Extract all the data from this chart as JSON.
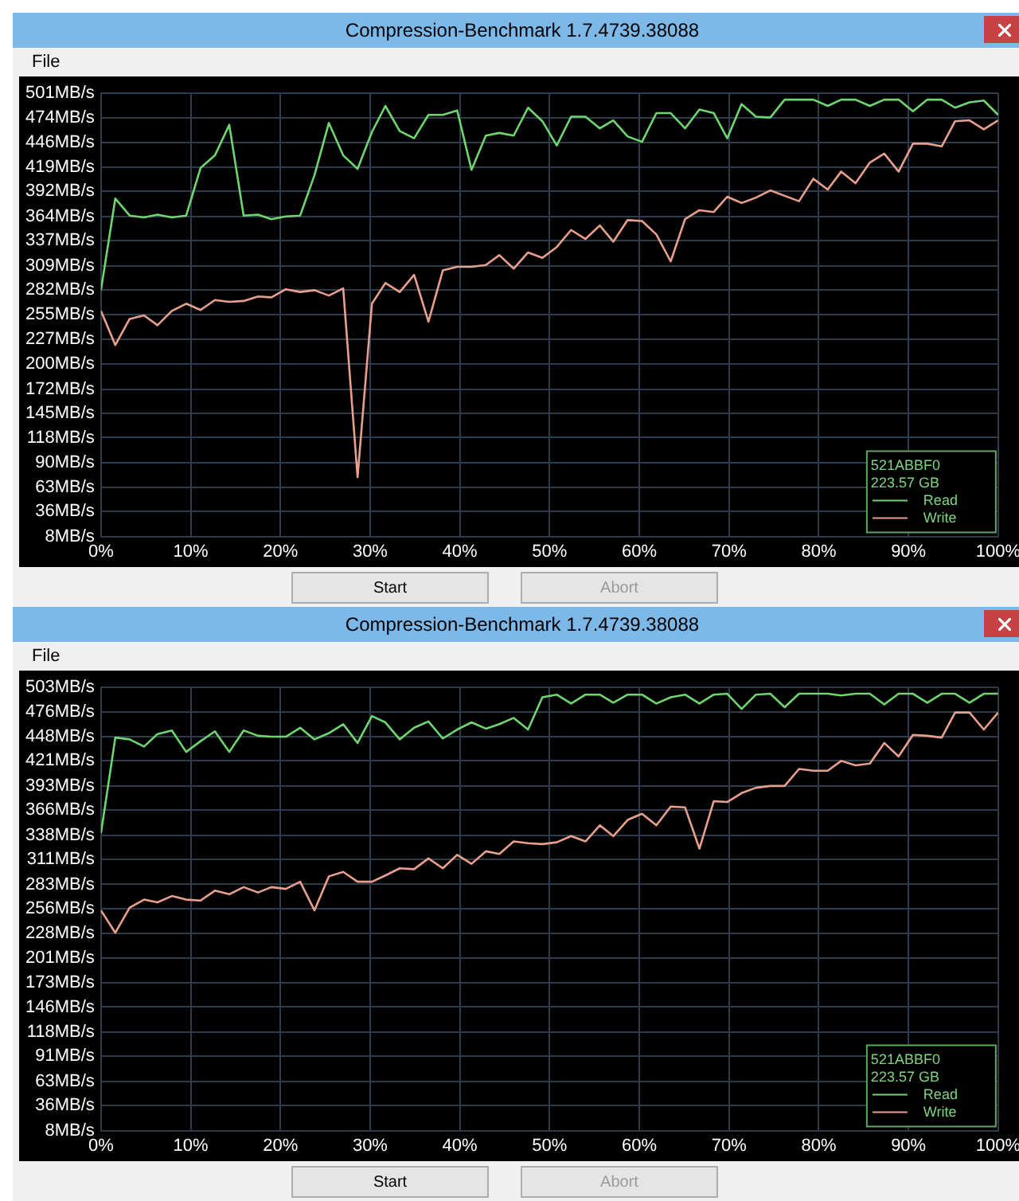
{
  "chart_data": [
    {
      "type": "line",
      "title": "Compression-Benchmark 1.7.4739.38088",
      "annotations": [
        "File",
        "521ABBF0",
        "223.57 GB",
        "Start",
        "Abort"
      ],
      "x": [
        0,
        1.6,
        3.2,
        4.8,
        6.3,
        7.9,
        9.5,
        11.1,
        12.7,
        14.3,
        15.9,
        17.5,
        19.0,
        20.6,
        22.2,
        23.8,
        25.4,
        27.0,
        28.6,
        30.2,
        31.7,
        33.3,
        34.9,
        36.5,
        38.1,
        39.7,
        41.3,
        42.9,
        44.4,
        46.0,
        47.6,
        49.2,
        50.8,
        52.4,
        54.0,
        55.6,
        57.1,
        58.7,
        60.3,
        61.9,
        63.5,
        65.1,
        66.7,
        68.3,
        69.8,
        71.4,
        73.0,
        74.6,
        76.2,
        77.8,
        79.4,
        81.0,
        82.5,
        84.1,
        85.7,
        87.3,
        88.9,
        90.5,
        92.1,
        93.7,
        95.2,
        96.8,
        98.4,
        100
      ],
      "series": [
        {
          "name": "Read",
          "color": "#6fd66f",
          "values": [
            282,
            384,
            365,
            363,
            366,
            363,
            365,
            418,
            432,
            466,
            365,
            366,
            361,
            364,
            365,
            410,
            468,
            432,
            417,
            458,
            487,
            459,
            451,
            477,
            477,
            482,
            416,
            454,
            457,
            454,
            485,
            470,
            443,
            475,
            475,
            462,
            471,
            453,
            447,
            479,
            479,
            462,
            483,
            479,
            451,
            489,
            475,
            474,
            494,
            494,
            494,
            487,
            494,
            494,
            487,
            494,
            494,
            481,
            494,
            494,
            485,
            491,
            493,
            477
          ]
        },
        {
          "name": "Write",
          "color": "#e8a08c",
          "values": [
            259,
            221,
            250,
            254,
            243,
            259,
            267,
            260,
            271,
            269,
            270,
            275,
            274,
            283,
            280,
            282,
            276,
            284,
            74,
            267,
            290,
            280,
            299,
            247,
            304,
            308,
            308,
            310,
            321,
            306,
            324,
            318,
            330,
            349,
            339,
            354,
            336,
            360,
            359,
            344,
            314,
            361,
            371,
            369,
            386,
            379,
            385,
            393,
            387,
            381,
            406,
            394,
            414,
            401,
            424,
            434,
            414,
            445,
            445,
            442,
            470,
            471,
            461,
            471
          ]
        }
      ],
      "xlim": [
        0,
        100
      ],
      "xticks": [
        {
          "value": 0,
          "label": "0%"
        },
        {
          "value": 10,
          "label": "10%"
        },
        {
          "value": 20,
          "label": "20%"
        },
        {
          "value": 30,
          "label": "30%"
        },
        {
          "value": 40,
          "label": "40%"
        },
        {
          "value": 50,
          "label": "50%"
        },
        {
          "value": 60,
          "label": "60%"
        },
        {
          "value": 70,
          "label": "70%"
        },
        {
          "value": 80,
          "label": "80%"
        },
        {
          "value": 90,
          "label": "90%"
        },
        {
          "value": 100,
          "label": "100%"
        }
      ],
      "ylim": [
        8,
        501
      ],
      "yticks": [
        {
          "value": 8,
          "label": "8MB/s"
        },
        {
          "value": 36,
          "label": "36MB/s"
        },
        {
          "value": 63,
          "label": "63MB/s"
        },
        {
          "value": 90,
          "label": "90MB/s"
        },
        {
          "value": 118,
          "label": "118MB/s"
        },
        {
          "value": 145,
          "label": "145MB/s"
        },
        {
          "value": 172,
          "label": "172MB/s"
        },
        {
          "value": 200,
          "label": "200MB/s"
        },
        {
          "value": 227,
          "label": "227MB/s"
        },
        {
          "value": 255,
          "label": "255MB/s"
        },
        {
          "value": 282,
          "label": "282MB/s"
        },
        {
          "value": 309,
          "label": "309MB/s"
        },
        {
          "value": 337,
          "label": "337MB/s"
        },
        {
          "value": 364,
          "label": "364MB/s"
        },
        {
          "value": 392,
          "label": "392MB/s"
        },
        {
          "value": 419,
          "label": "419MB/s"
        },
        {
          "value": 446,
          "label": "446MB/s"
        },
        {
          "value": 474,
          "label": "474MB/s"
        },
        {
          "value": 501,
          "label": "501MB/s"
        }
      ],
      "grid": true,
      "legend": "bottom right",
      "marker": "none",
      "line_style": "solid"
    },
    {
      "type": "line",
      "title": "Compression-Benchmark 1.7.4739.38088",
      "annotations": [
        "File",
        "521ABBF0",
        "223.57 GB",
        "Start",
        "Abort"
      ],
      "x": [
        0,
        1.6,
        3.2,
        4.8,
        6.3,
        7.9,
        9.5,
        11.1,
        12.7,
        14.3,
        15.9,
        17.5,
        19.0,
        20.6,
        22.2,
        23.8,
        25.4,
        27.0,
        28.6,
        30.2,
        31.7,
        33.3,
        34.9,
        36.5,
        38.1,
        39.7,
        41.3,
        42.9,
        44.4,
        46.0,
        47.6,
        49.2,
        50.8,
        52.4,
        54.0,
        55.6,
        57.1,
        58.7,
        60.3,
        61.9,
        63.5,
        65.1,
        66.7,
        68.3,
        69.8,
        71.4,
        73.0,
        74.6,
        76.2,
        77.8,
        79.4,
        81.0,
        82.5,
        84.1,
        85.7,
        87.3,
        88.9,
        90.5,
        92.1,
        93.7,
        95.2,
        96.8,
        98.4,
        100
      ],
      "series": [
        {
          "name": "Read",
          "color": "#6fd66f",
          "values": [
            340,
            447,
            445,
            437,
            451,
            455,
            431,
            443,
            454,
            431,
            455,
            449,
            448,
            448,
            458,
            445,
            452,
            462,
            441,
            471,
            464,
            445,
            458,
            465,
            446,
            456,
            464,
            457,
            462,
            469,
            456,
            492,
            495,
            485,
            495,
            495,
            486,
            495,
            495,
            485,
            492,
            495,
            485,
            495,
            496,
            479,
            495,
            496,
            481,
            496,
            496,
            496,
            494,
            496,
            496,
            484,
            496,
            496,
            486,
            496,
            496,
            486,
            496,
            496
          ]
        },
        {
          "name": "Write",
          "color": "#e8a08c",
          "values": [
            254,
            229,
            257,
            266,
            263,
            270,
            266,
            265,
            276,
            272,
            280,
            274,
            280,
            278,
            286,
            254,
            292,
            297,
            286,
            286,
            293,
            301,
            300,
            312,
            301,
            316,
            306,
            320,
            317,
            331,
            329,
            328,
            330,
            337,
            331,
            349,
            337,
            355,
            362,
            349,
            370,
            369,
            323,
            376,
            375,
            385,
            391,
            393,
            393,
            412,
            410,
            410,
            421,
            416,
            418,
            441,
            426,
            450,
            449,
            447,
            475,
            475,
            456,
            475
          ]
        }
      ],
      "xlim": [
        0,
        100
      ],
      "xticks": [
        {
          "value": 0,
          "label": "0%"
        },
        {
          "value": 10,
          "label": "10%"
        },
        {
          "value": 20,
          "label": "20%"
        },
        {
          "value": 30,
          "label": "30%"
        },
        {
          "value": 40,
          "label": "40%"
        },
        {
          "value": 50,
          "label": "50%"
        },
        {
          "value": 60,
          "label": "60%"
        },
        {
          "value": 70,
          "label": "70%"
        },
        {
          "value": 80,
          "label": "80%"
        },
        {
          "value": 90,
          "label": "90%"
        },
        {
          "value": 100,
          "label": "100%"
        }
      ],
      "ylim": [
        8,
        503
      ],
      "yticks": [
        {
          "value": 8,
          "label": "8MB/s"
        },
        {
          "value": 36,
          "label": "36MB/s"
        },
        {
          "value": 63,
          "label": "63MB/s"
        },
        {
          "value": 91,
          "label": "91MB/s"
        },
        {
          "value": 118,
          "label": "118MB/s"
        },
        {
          "value": 146,
          "label": "146MB/s"
        },
        {
          "value": 173,
          "label": "173MB/s"
        },
        {
          "value": 201,
          "label": "201MB/s"
        },
        {
          "value": 228,
          "label": "228MB/s"
        },
        {
          "value": 256,
          "label": "256MB/s"
        },
        {
          "value": 283,
          "label": "283MB/s"
        },
        {
          "value": 311,
          "label": "311MB/s"
        },
        {
          "value": 338,
          "label": "338MB/s"
        },
        {
          "value": 366,
          "label": "366MB/s"
        },
        {
          "value": 393,
          "label": "393MB/s"
        },
        {
          "value": 421,
          "label": "421MB/s"
        },
        {
          "value": 448,
          "label": "448MB/s"
        },
        {
          "value": 476,
          "label": "476MB/s"
        },
        {
          "value": 503,
          "label": "503MB/s"
        }
      ],
      "grid": true,
      "legend": "bottom right",
      "marker": "none",
      "line_style": "solid"
    }
  ]
}
